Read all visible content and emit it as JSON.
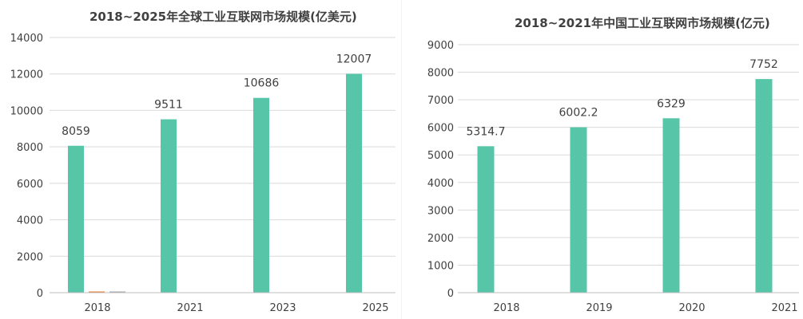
{
  "colors": {
    "bar": "#57c5a8",
    "bar_small_1": "#ed7d31",
    "bar_small_2": "#a5a5a5",
    "grid": "#d9d9d9",
    "text": "#404040"
  },
  "chart_data": [
    {
      "type": "bar",
      "title": "2018~2025年全球工业互联网市场规模(亿美元)",
      "categories": [
        "2018",
        "2021",
        "2023",
        "2025"
      ],
      "series": [
        {
          "values": [
            8059,
            9511,
            10686,
            12007
          ]
        },
        {
          "values": [
            14,
            0,
            0,
            0
          ]
        },
        {
          "values": [
            12,
            0,
            0,
            0
          ]
        }
      ],
      "data_labels": [
        "8059",
        "9511",
        "10686",
        "12007"
      ],
      "yticks": [
        "0",
        "2000",
        "4000",
        "6000",
        "8000",
        "10000",
        "12000",
        "14000"
      ],
      "ylim": [
        0,
        14000
      ],
      "grid": true,
      "legend": "none"
    },
    {
      "type": "bar",
      "title": "2018~2021年中国工业互联网市场规模(亿元)",
      "categories": [
        "2018",
        "2019",
        "2020",
        "2021"
      ],
      "series": [
        {
          "values": [
            5314.7,
            6002.2,
            6329,
            7752
          ]
        }
      ],
      "data_labels": [
        "5314.7",
        "6002.2",
        "6329",
        "7752"
      ],
      "yticks": [
        "0",
        "1000",
        "2000",
        "3000",
        "4000",
        "5000",
        "6000",
        "7000",
        "8000",
        "9000"
      ],
      "ylim": [
        0,
        9000
      ],
      "grid": true,
      "legend": "none"
    }
  ]
}
